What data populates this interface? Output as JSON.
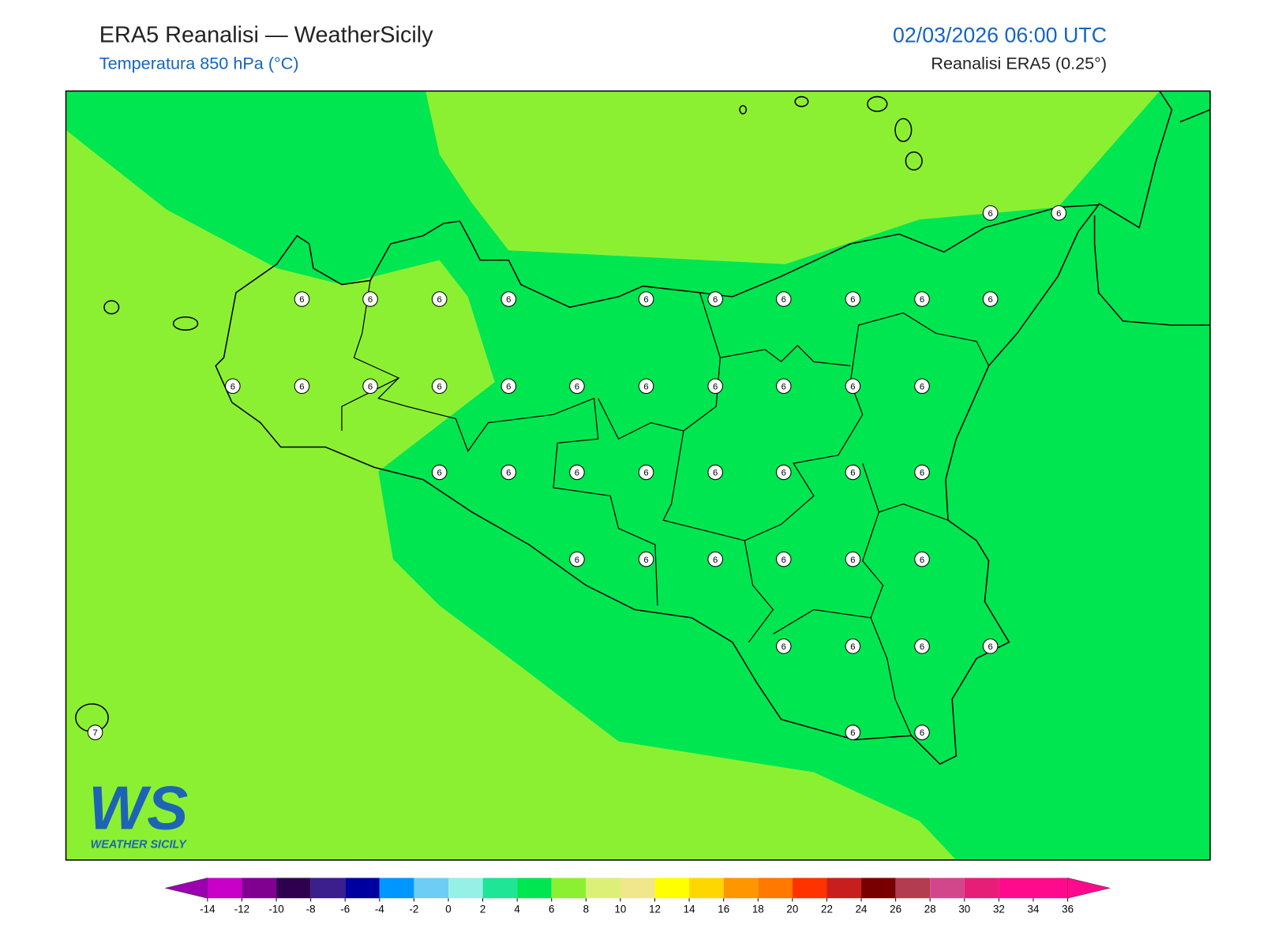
{
  "header": {
    "title": "ERA5 Reanalisi — WeatherSicily",
    "subtitle": "Temperatura 850 hPa (°C)",
    "datetime": "02/03/2026 06:00 UTC",
    "source": "Reanalisi ERA5 (0.25°)"
  },
  "stations": [
    6,
    6,
    6,
    6,
    6,
    6,
    6,
    6,
    6,
    6,
    6,
    6,
    6,
    6,
    6,
    6,
    6,
    6,
    6,
    6,
    6,
    6,
    6,
    6,
    6,
    6,
    6,
    6,
    6,
    6,
    6,
    6,
    6,
    6,
    6,
    6,
    6,
    6,
    6,
    6,
    6,
    7,
    6,
    6
  ],
  "colorbar": {
    "ticks": [
      -14,
      -12,
      -10,
      -8,
      -6,
      -4,
      -2,
      0,
      2,
      4,
      6,
      8,
      10,
      12,
      14,
      16,
      18,
      20,
      22,
      24,
      26,
      28,
      30,
      32,
      34,
      36
    ],
    "under_color": "#9b00b0",
    "over_color": "#ff0a8c",
    "colors": [
      "#c800c8",
      "#800090",
      "#300050",
      "#3c1e8c",
      "#0000a0",
      "#0096ff",
      "#6ecdf5",
      "#96f0e6",
      "#1ee696",
      "#00e650",
      "#8cf032",
      "#dcf078",
      "#f0e68c",
      "#ffff00",
      "#ffd700",
      "#ff9600",
      "#ff7800",
      "#ff3200",
      "#c81e1e",
      "#780000",
      "#b43c50",
      "#d2468c",
      "#e61e78",
      "#ff0a8c",
      "#ff0a8c"
    ]
  },
  "logo": {
    "mark": "WS",
    "text": "WEATHER SICILY"
  }
}
